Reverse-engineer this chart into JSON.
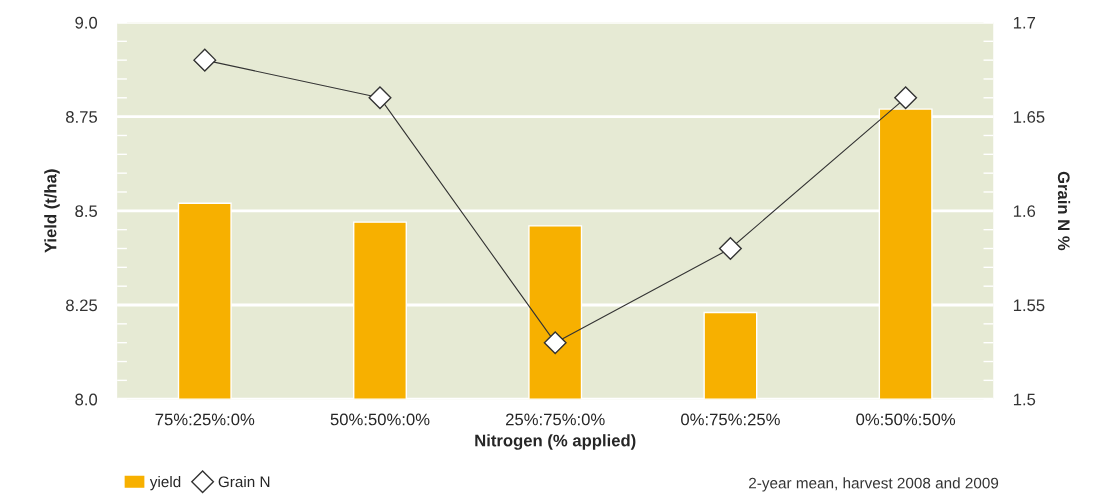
{
  "chart_data": {
    "type": "bar",
    "categories": [
      "75%:25%:0%",
      "50%:50%:0%",
      "25%:75%:0%",
      "0%:75%:25%",
      "0%:50%:50%"
    ],
    "xlabel": "Nitrogen (% applied)",
    "ylabel": "Yield (t/ha)",
    "y2label": "Grain N %",
    "series": [
      {
        "name": "yield",
        "color": "#f7b000",
        "values": [
          8.52,
          8.47,
          8.46,
          8.23,
          8.77
        ]
      },
      {
        "name": "Grain N",
        "type": "line",
        "axis": "y2",
        "color": "#333333",
        "marker": "diamond",
        "values": [
          1.68,
          1.66,
          1.53,
          1.58,
          1.66
        ]
      }
    ],
    "ylim": [
      8.0,
      9.0
    ],
    "yticks": [
      {
        "value": 8.0,
        "label": "8.0"
      },
      {
        "value": 8.05,
        "label": null
      },
      {
        "value": 8.1,
        "label": null
      },
      {
        "value": 8.15,
        "label": null
      },
      {
        "value": 8.2,
        "label": null
      },
      8.25,
      {
        "value": 8.3,
        "label": null
      },
      {
        "value": 8.35,
        "label": null
      },
      {
        "value": 8.4,
        "label": null
      },
      {
        "value": 8.45,
        "label": null
      },
      8.5,
      {
        "value": 8.55,
        "label": null
      },
      {
        "value": 8.6,
        "label": null
      },
      {
        "value": 8.65,
        "label": null
      },
      {
        "value": 8.7,
        "label": null
      },
      8.75,
      {
        "value": 8.8,
        "label": null
      },
      {
        "value": 8.85,
        "label": null
      },
      {
        "value": 8.9,
        "label": null
      },
      {
        "value": 8.95,
        "label": null
      },
      {
        "value": 9.0,
        "label": "9.0"
      }
    ],
    "y2lim": [
      1.5,
      1.7
    ],
    "y2ticks": [
      1.5,
      {
        "value": 1.51,
        "label": null
      },
      {
        "value": 1.52,
        "label": null
      },
      {
        "value": 1.53,
        "label": null
      },
      {
        "value": 1.54,
        "label": null
      },
      1.55,
      {
        "value": 1.56,
        "label": null
      },
      {
        "value": 1.57,
        "label": null
      },
      {
        "value": 1.58,
        "label": null
      },
      {
        "value": 1.59,
        "label": null
      },
      1.6,
      {
        "value": 1.61,
        "label": null
      },
      {
        "value": 1.62,
        "label": null
      },
      {
        "value": 1.63,
        "label": null
      },
      {
        "value": 1.64,
        "label": null
      },
      1.65,
      {
        "value": 1.66,
        "label": null
      },
      {
        "value": 1.67,
        "label": null
      },
      {
        "value": 1.68,
        "label": null
      },
      {
        "value": 1.69,
        "label": null
      },
      1.7
    ],
    "grid": "y",
    "legend": "bottom left",
    "annotations": [
      "2-year mean, harvest 2008 and 2009"
    ]
  }
}
